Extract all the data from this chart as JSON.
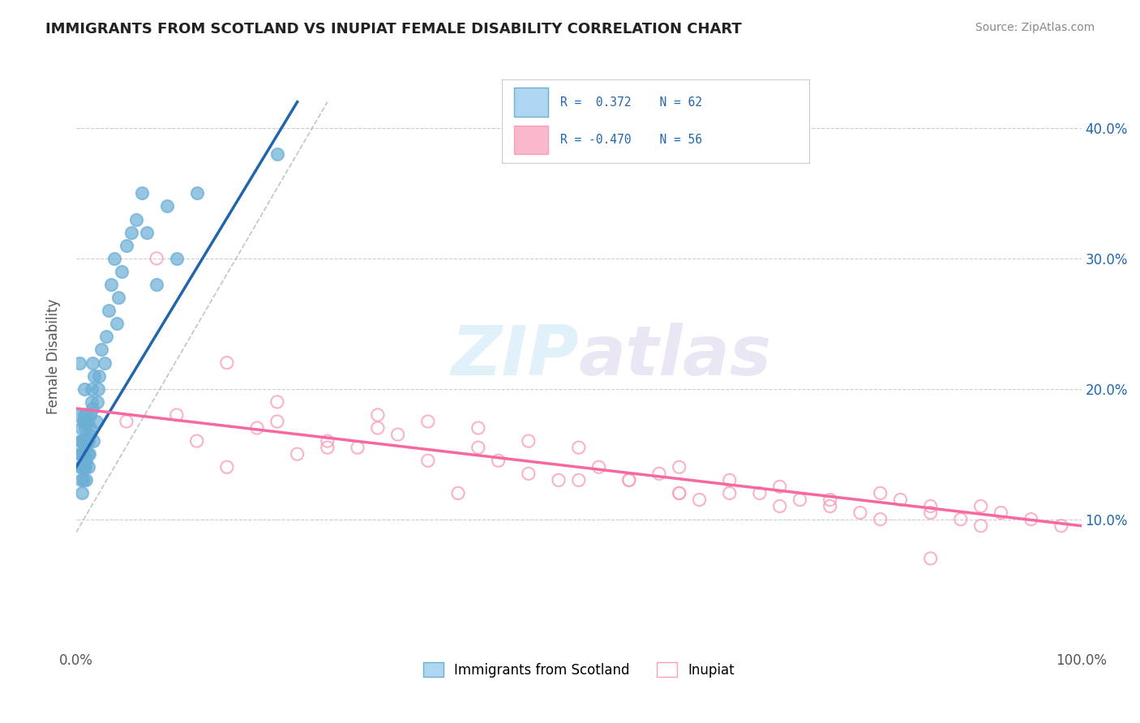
{
  "title": "IMMIGRANTS FROM SCOTLAND VS INUPIAT FEMALE DISABILITY CORRELATION CHART",
  "source": "Source: ZipAtlas.com",
  "xlabel": "",
  "ylabel": "Female Disability",
  "xlim": [
    0.0,
    1.0
  ],
  "ylim_left": [
    0.0,
    0.45
  ],
  "x_tick_labels": [
    "0.0%",
    "100.0%"
  ],
  "y_tick_labels_right": [
    "10.0%",
    "20.0%",
    "30.0%",
    "40.0%"
  ],
  "legend_r1": "R =  0.372",
  "legend_n1": "N = 62",
  "legend_r2": "R = -0.470",
  "legend_n2": "N = 56",
  "scatter_blue": {
    "x": [
      0.002,
      0.003,
      0.003,
      0.004,
      0.004,
      0.005,
      0.005,
      0.005,
      0.006,
      0.006,
      0.006,
      0.007,
      0.007,
      0.007,
      0.008,
      0.008,
      0.008,
      0.008,
      0.009,
      0.009,
      0.009,
      0.01,
      0.01,
      0.01,
      0.01,
      0.011,
      0.011,
      0.012,
      0.012,
      0.013,
      0.013,
      0.014,
      0.014,
      0.015,
      0.015,
      0.016,
      0.016,
      0.017,
      0.018,
      0.02,
      0.021,
      0.022,
      0.023,
      0.025,
      0.028,
      0.03,
      0.032,
      0.035,
      0.038,
      0.04,
      0.042,
      0.045,
      0.05,
      0.055,
      0.06,
      0.065,
      0.07,
      0.08,
      0.09,
      0.1,
      0.12,
      0.2
    ],
    "y": [
      0.18,
      0.15,
      0.22,
      0.14,
      0.16,
      0.13,
      0.15,
      0.17,
      0.12,
      0.14,
      0.16,
      0.13,
      0.15,
      0.175,
      0.14,
      0.16,
      0.18,
      0.2,
      0.14,
      0.155,
      0.17,
      0.13,
      0.145,
      0.16,
      0.18,
      0.15,
      0.175,
      0.14,
      0.16,
      0.15,
      0.165,
      0.18,
      0.17,
      0.19,
      0.2,
      0.22,
      0.185,
      0.16,
      0.21,
      0.175,
      0.19,
      0.2,
      0.21,
      0.23,
      0.22,
      0.24,
      0.26,
      0.28,
      0.3,
      0.25,
      0.27,
      0.29,
      0.31,
      0.32,
      0.33,
      0.35,
      0.32,
      0.28,
      0.34,
      0.3,
      0.35,
      0.38
    ]
  },
  "scatter_pink": {
    "x": [
      0.05,
      0.08,
      0.1,
      0.12,
      0.15,
      0.18,
      0.2,
      0.22,
      0.25,
      0.28,
      0.3,
      0.32,
      0.35,
      0.38,
      0.4,
      0.42,
      0.45,
      0.48,
      0.5,
      0.52,
      0.55,
      0.58,
      0.6,
      0.62,
      0.65,
      0.68,
      0.7,
      0.72,
      0.75,
      0.78,
      0.8,
      0.82,
      0.85,
      0.88,
      0.9,
      0.92,
      0.95,
      0.98,
      0.15,
      0.25,
      0.35,
      0.45,
      0.55,
      0.65,
      0.75,
      0.85,
      0.3,
      0.4,
      0.5,
      0.6,
      0.7,
      0.8,
      0.9,
      0.2,
      0.6,
      0.85
    ],
    "y": [
      0.175,
      0.3,
      0.18,
      0.16,
      0.22,
      0.17,
      0.175,
      0.15,
      0.16,
      0.155,
      0.17,
      0.165,
      0.175,
      0.12,
      0.155,
      0.145,
      0.16,
      0.13,
      0.155,
      0.14,
      0.13,
      0.135,
      0.12,
      0.115,
      0.13,
      0.12,
      0.125,
      0.115,
      0.11,
      0.105,
      0.12,
      0.115,
      0.105,
      0.1,
      0.11,
      0.105,
      0.1,
      0.095,
      0.14,
      0.155,
      0.145,
      0.135,
      0.13,
      0.12,
      0.115,
      0.11,
      0.18,
      0.17,
      0.13,
      0.12,
      0.11,
      0.1,
      0.095,
      0.19,
      0.14,
      0.07
    ]
  },
  "trendline_blue": {
    "x": [
      0.0,
      0.22
    ],
    "y": [
      0.14,
      0.42
    ]
  },
  "trendline_pink": {
    "x": [
      0.0,
      1.0
    ],
    "y": [
      0.185,
      0.095
    ]
  },
  "trendline_dashed": {
    "x": [
      0.0,
      0.25
    ],
    "y": [
      0.09,
      0.42
    ]
  },
  "color_blue": "#6baed6",
  "color_pink": "#fa9fb5",
  "color_trendline_blue": "#2166ac",
  "color_trendline_pink": "#f768a1",
  "color_trendline_dashed": "#aaaaaa",
  "watermark_zip": "ZIP",
  "watermark_atlas": "atlas",
  "background_color": "#ffffff"
}
